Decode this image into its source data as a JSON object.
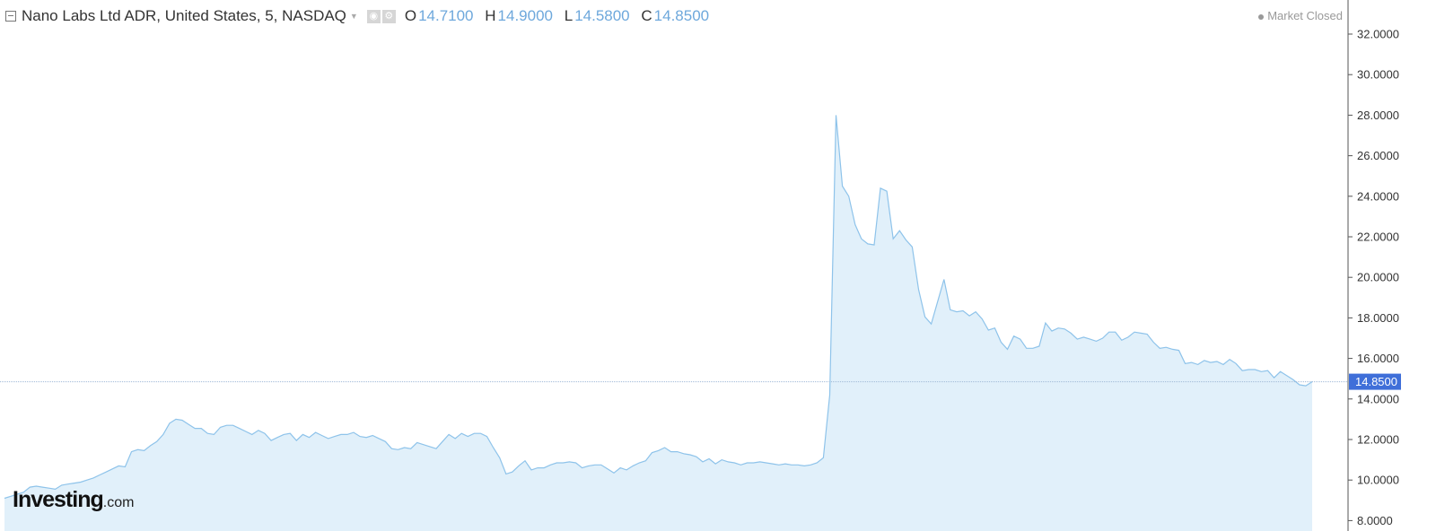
{
  "header": {
    "title": "Nano Labs Ltd ADR, United States, 5, NASDAQ",
    "ohlc": [
      {
        "key": "O",
        "value": "14.7100"
      },
      {
        "key": "H",
        "value": "14.9000"
      },
      {
        "key": "L",
        "value": "14.5800"
      },
      {
        "key": "C",
        "value": "14.8500"
      }
    ],
    "market_status": "Market Closed"
  },
  "logo": {
    "main": "Investing",
    "suffix": ".com"
  },
  "colors": {
    "line": "#8ec3ea",
    "fill": "#e1f0fa",
    "last_price_label": "#3f6fd9",
    "ohlc_values": "#6ea8dc"
  },
  "chart_data": {
    "type": "area",
    "title": "Nano Labs Ltd ADR, United States, 5, NASDAQ",
    "ylim": [
      8,
      33.2
    ],
    "y_ticks": [
      "32.0000",
      "30.0000",
      "28.0000",
      "26.0000",
      "24.0000",
      "22.0000",
      "20.0000",
      "18.0000",
      "16.0000",
      "14.0000",
      "12.0000",
      "10.0000",
      "8.0000"
    ],
    "y_tick_values": [
      32,
      30,
      28,
      26,
      24,
      22,
      20,
      18,
      16,
      14,
      12,
      10,
      8
    ],
    "last_price": 14.85,
    "last_price_label": "14.8500",
    "axis_position": "right",
    "grid": false,
    "values": [
      9.1,
      9.2,
      9.3,
      9.4,
      9.65,
      9.7,
      9.65,
      9.6,
      9.55,
      9.75,
      9.8,
      9.85,
      9.9,
      10.0,
      10.1,
      10.25,
      10.4,
      10.55,
      10.7,
      10.65,
      11.4,
      11.5,
      11.45,
      11.7,
      11.9,
      12.25,
      12.8,
      13.0,
      12.95,
      12.75,
      12.55,
      12.55,
      12.3,
      12.25,
      12.6,
      12.7,
      12.7,
      12.55,
      12.4,
      12.25,
      12.45,
      12.3,
      11.95,
      12.1,
      12.25,
      12.3,
      11.95,
      12.25,
      12.1,
      12.35,
      12.2,
      12.05,
      12.15,
      12.25,
      12.25,
      12.35,
      12.15,
      12.1,
      12.2,
      12.05,
      11.9,
      11.55,
      11.5,
      11.6,
      11.55,
      11.85,
      11.75,
      11.65,
      11.55,
      11.9,
      12.25,
      12.05,
      12.3,
      12.15,
      12.3,
      12.3,
      12.15,
      11.6,
      11.1,
      10.3,
      10.4,
      10.7,
      10.95,
      10.5,
      10.6,
      10.6,
      10.75,
      10.85,
      10.85,
      10.9,
      10.85,
      10.6,
      10.7,
      10.75,
      10.75,
      10.55,
      10.35,
      10.6,
      10.5,
      10.7,
      10.85,
      10.95,
      11.35,
      11.45,
      11.6,
      11.4,
      11.4,
      11.3,
      11.25,
      11.15,
      10.9,
      11.05,
      10.8,
      11.0,
      10.9,
      10.85,
      10.75,
      10.85,
      10.85,
      10.9,
      10.85,
      10.8,
      10.75,
      10.8,
      10.75,
      10.75,
      10.7,
      10.75,
      10.85,
      11.1,
      14.2,
      28.0,
      24.5,
      24.0,
      22.6,
      21.9,
      21.65,
      21.6,
      24.4,
      24.25,
      21.9,
      22.3,
      21.85,
      21.5,
      19.4,
      18.05,
      17.7,
      18.8,
      19.9,
      18.4,
      18.3,
      18.35,
      18.1,
      18.3,
      17.95,
      17.4,
      17.5,
      16.8,
      16.45,
      17.1,
      16.95,
      16.5,
      16.5,
      16.6,
      17.75,
      17.35,
      17.5,
      17.45,
      17.25,
      16.95,
      17.05,
      16.95,
      16.85,
      17.0,
      17.3,
      17.3,
      16.9,
      17.05,
      17.3,
      17.25,
      17.2,
      16.8,
      16.5,
      16.55,
      16.45,
      16.4,
      15.75,
      15.8,
      15.7,
      15.9,
      15.8,
      15.85,
      15.7,
      15.95,
      15.75,
      15.4,
      15.45,
      15.45,
      15.35,
      15.4,
      15.05,
      15.35,
      15.15,
      14.95,
      14.7,
      14.65,
      14.85
    ]
  }
}
